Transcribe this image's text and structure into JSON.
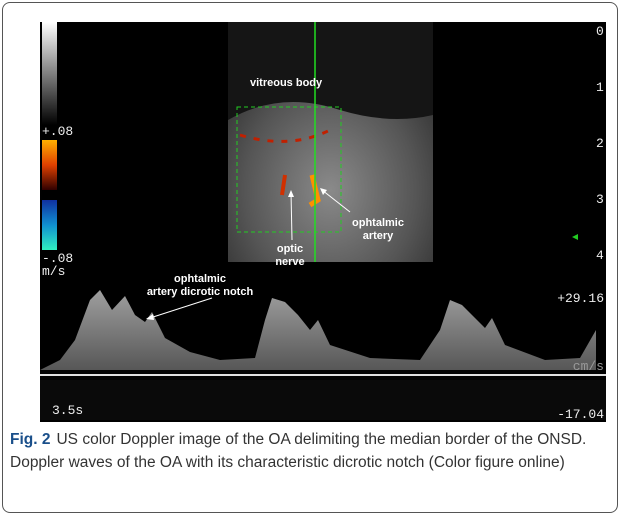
{
  "figure": {
    "image": {
      "scale_top": "+.08",
      "scale_bottom": "-.08",
      "scale_unit": "m/s",
      "depth_marks": [
        "0",
        "1",
        "2",
        "3",
        "4"
      ],
      "labels": {
        "vitreous_body": "vitreous body",
        "optic_nerve": [
          "optic",
          "nerve"
        ],
        "ophtalmic_artery": [
          "ophtalmic",
          "artery"
        ],
        "dicrotic_notch": [
          "ophtalmic",
          "artery dicrotic notch"
        ]
      },
      "velocity_top": "+29.16",
      "velocity_unit": "cm/s",
      "time_scale": "3.5s",
      "velocity_bottom": "-17.04"
    },
    "caption": {
      "label": "Fig. 2",
      "text": "US color Doppler image of the OA delimiting the median border of the ONSD. Doppler waves of the OA with its characteristic dicrotic notch (Color figure online)"
    }
  }
}
